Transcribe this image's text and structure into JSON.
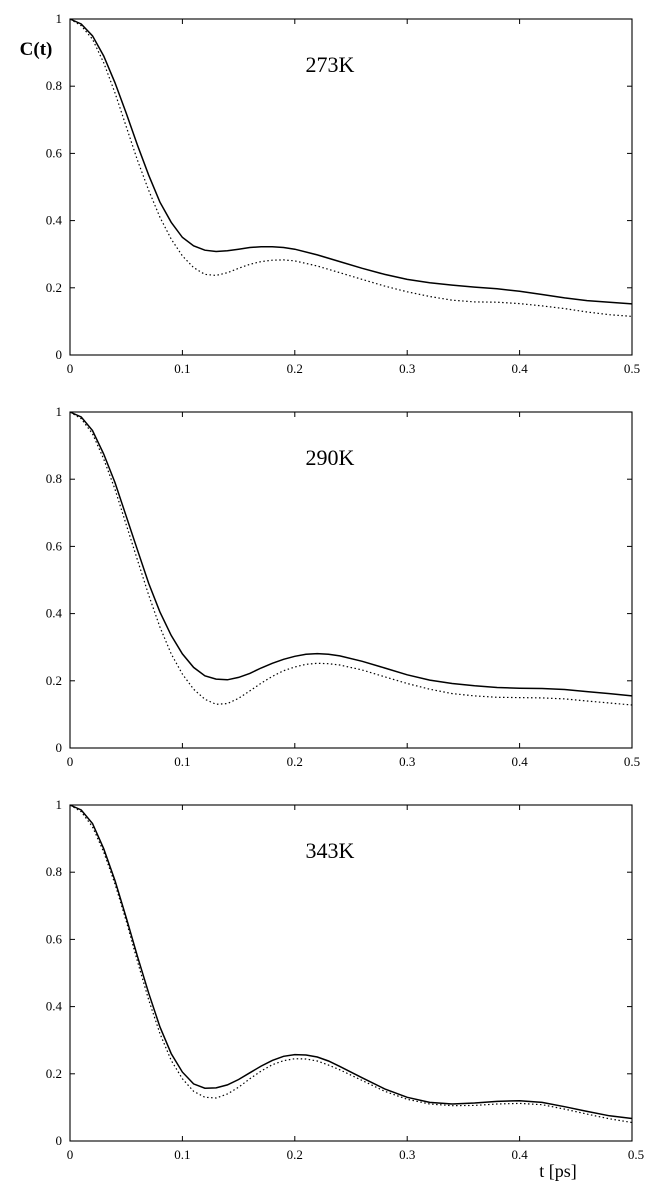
{
  "ylabel": "C(t)",
  "xlabel": "t [ps]",
  "chart_data": [
    {
      "type": "line",
      "panel_label": "273K",
      "xlim": [
        0,
        0.5
      ],
      "ylim": [
        0,
        1
      ],
      "x_ticks": [
        "0",
        "0.1",
        "0.2",
        "0.3",
        "0.4",
        "0.5"
      ],
      "y_ticks": [
        "0",
        "0.2",
        "0.4",
        "0.6",
        "0.8",
        "1"
      ],
      "grid": false,
      "series": [
        {
          "style": "solid",
          "x": [
            0,
            0.01,
            0.02,
            0.03,
            0.04,
            0.05,
            0.06,
            0.07,
            0.08,
            0.09,
            0.1,
            0.11,
            0.12,
            0.13,
            0.14,
            0.15,
            0.16,
            0.17,
            0.18,
            0.19,
            0.2,
            0.22,
            0.24,
            0.26,
            0.28,
            0.3,
            0.32,
            0.34,
            0.36,
            0.38,
            0.4,
            0.42,
            0.44,
            0.46,
            0.48,
            0.5
          ],
          "y": [
            1,
            0.985,
            0.95,
            0.89,
            0.81,
            0.72,
            0.625,
            0.535,
            0.455,
            0.395,
            0.35,
            0.325,
            0.312,
            0.308,
            0.31,
            0.315,
            0.32,
            0.322,
            0.322,
            0.32,
            0.315,
            0.298,
            0.278,
            0.258,
            0.24,
            0.225,
            0.215,
            0.208,
            0.202,
            0.197,
            0.19,
            0.18,
            0.17,
            0.162,
            0.157,
            0.152
          ]
        },
        {
          "style": "dotted",
          "x": [
            0,
            0.01,
            0.02,
            0.03,
            0.04,
            0.05,
            0.06,
            0.07,
            0.08,
            0.09,
            0.1,
            0.11,
            0.12,
            0.13,
            0.14,
            0.15,
            0.16,
            0.17,
            0.18,
            0.19,
            0.2,
            0.22,
            0.24,
            0.26,
            0.28,
            0.3,
            0.32,
            0.34,
            0.36,
            0.38,
            0.4,
            0.42,
            0.44,
            0.46,
            0.48,
            0.5
          ],
          "y": [
            1,
            0.98,
            0.94,
            0.87,
            0.78,
            0.68,
            0.58,
            0.49,
            0.41,
            0.345,
            0.295,
            0.26,
            0.24,
            0.237,
            0.245,
            0.258,
            0.27,
            0.278,
            0.282,
            0.283,
            0.28,
            0.265,
            0.245,
            0.225,
            0.205,
            0.188,
            0.174,
            0.163,
            0.158,
            0.157,
            0.153,
            0.146,
            0.138,
            0.128,
            0.12,
            0.115
          ]
        }
      ]
    },
    {
      "type": "line",
      "panel_label": "290K",
      "xlim": [
        0,
        0.5
      ],
      "ylim": [
        0,
        1
      ],
      "x_ticks": [
        "0",
        "0.1",
        "0.2",
        "0.3",
        "0.4",
        "0.5"
      ],
      "y_ticks": [
        "0",
        "0.2",
        "0.4",
        "0.6",
        "0.8",
        "1"
      ],
      "grid": false,
      "series": [
        {
          "style": "solid",
          "x": [
            0,
            0.01,
            0.02,
            0.03,
            0.04,
            0.05,
            0.06,
            0.07,
            0.08,
            0.09,
            0.1,
            0.11,
            0.12,
            0.13,
            0.14,
            0.15,
            0.16,
            0.17,
            0.18,
            0.19,
            0.2,
            0.21,
            0.22,
            0.23,
            0.24,
            0.26,
            0.28,
            0.3,
            0.32,
            0.34,
            0.36,
            0.38,
            0.4,
            0.42,
            0.44,
            0.46,
            0.48,
            0.5
          ],
          "y": [
            1,
            0.985,
            0.945,
            0.875,
            0.79,
            0.69,
            0.59,
            0.49,
            0.405,
            0.335,
            0.28,
            0.24,
            0.215,
            0.205,
            0.203,
            0.21,
            0.222,
            0.238,
            0.252,
            0.264,
            0.273,
            0.279,
            0.281,
            0.279,
            0.274,
            0.258,
            0.238,
            0.218,
            0.202,
            0.192,
            0.185,
            0.18,
            0.178,
            0.177,
            0.174,
            0.168,
            0.162,
            0.155
          ]
        },
        {
          "style": "dotted",
          "x": [
            0,
            0.01,
            0.02,
            0.03,
            0.04,
            0.05,
            0.06,
            0.07,
            0.08,
            0.09,
            0.1,
            0.11,
            0.12,
            0.13,
            0.14,
            0.15,
            0.16,
            0.17,
            0.18,
            0.19,
            0.2,
            0.21,
            0.22,
            0.23,
            0.24,
            0.26,
            0.28,
            0.3,
            0.32,
            0.34,
            0.36,
            0.38,
            0.4,
            0.42,
            0.44,
            0.46,
            0.48,
            0.5
          ],
          "y": [
            1,
            0.98,
            0.935,
            0.86,
            0.77,
            0.665,
            0.56,
            0.455,
            0.36,
            0.28,
            0.22,
            0.175,
            0.145,
            0.13,
            0.132,
            0.148,
            0.17,
            0.193,
            0.213,
            0.23,
            0.241,
            0.249,
            0.252,
            0.251,
            0.247,
            0.232,
            0.212,
            0.192,
            0.175,
            0.162,
            0.155,
            0.151,
            0.15,
            0.149,
            0.146,
            0.14,
            0.134,
            0.128
          ]
        }
      ]
    },
    {
      "type": "line",
      "panel_label": "343K",
      "xlim": [
        0,
        0.5
      ],
      "ylim": [
        0,
        1
      ],
      "x_ticks": [
        "0",
        "0.1",
        "0.2",
        "0.3",
        "0.4",
        "0.5"
      ],
      "y_ticks": [
        "0",
        "0.2",
        "0.4",
        "0.6",
        "0.8",
        "1"
      ],
      "grid": false,
      "series": [
        {
          "style": "solid",
          "x": [
            0,
            0.01,
            0.02,
            0.03,
            0.04,
            0.05,
            0.06,
            0.07,
            0.08,
            0.09,
            0.1,
            0.11,
            0.12,
            0.13,
            0.14,
            0.15,
            0.16,
            0.17,
            0.18,
            0.19,
            0.2,
            0.21,
            0.22,
            0.23,
            0.24,
            0.26,
            0.28,
            0.3,
            0.32,
            0.34,
            0.36,
            0.38,
            0.4,
            0.42,
            0.44,
            0.46,
            0.48,
            0.5
          ],
          "y": [
            1,
            0.985,
            0.945,
            0.87,
            0.775,
            0.665,
            0.55,
            0.44,
            0.34,
            0.26,
            0.205,
            0.17,
            0.157,
            0.158,
            0.167,
            0.183,
            0.203,
            0.223,
            0.24,
            0.252,
            0.257,
            0.256,
            0.25,
            0.238,
            0.222,
            0.188,
            0.155,
            0.13,
            0.115,
            0.11,
            0.113,
            0.118,
            0.12,
            0.115,
            0.102,
            0.088,
            0.075,
            0.067
          ]
        },
        {
          "style": "dotted",
          "x": [
            0,
            0.01,
            0.02,
            0.03,
            0.04,
            0.05,
            0.06,
            0.07,
            0.08,
            0.09,
            0.1,
            0.11,
            0.12,
            0.13,
            0.14,
            0.15,
            0.16,
            0.17,
            0.18,
            0.19,
            0.2,
            0.21,
            0.22,
            0.23,
            0.24,
            0.26,
            0.28,
            0.3,
            0.32,
            0.34,
            0.36,
            0.38,
            0.4,
            0.42,
            0.44,
            0.46,
            0.48,
            0.5
          ],
          "y": [
            1,
            0.98,
            0.935,
            0.86,
            0.765,
            0.655,
            0.535,
            0.42,
            0.32,
            0.24,
            0.185,
            0.148,
            0.13,
            0.128,
            0.14,
            0.16,
            0.185,
            0.208,
            0.227,
            0.239,
            0.245,
            0.244,
            0.238,
            0.226,
            0.212,
            0.18,
            0.148,
            0.124,
            0.11,
            0.105,
            0.106,
            0.11,
            0.112,
            0.108,
            0.095,
            0.08,
            0.066,
            0.055
          ]
        }
      ]
    }
  ]
}
